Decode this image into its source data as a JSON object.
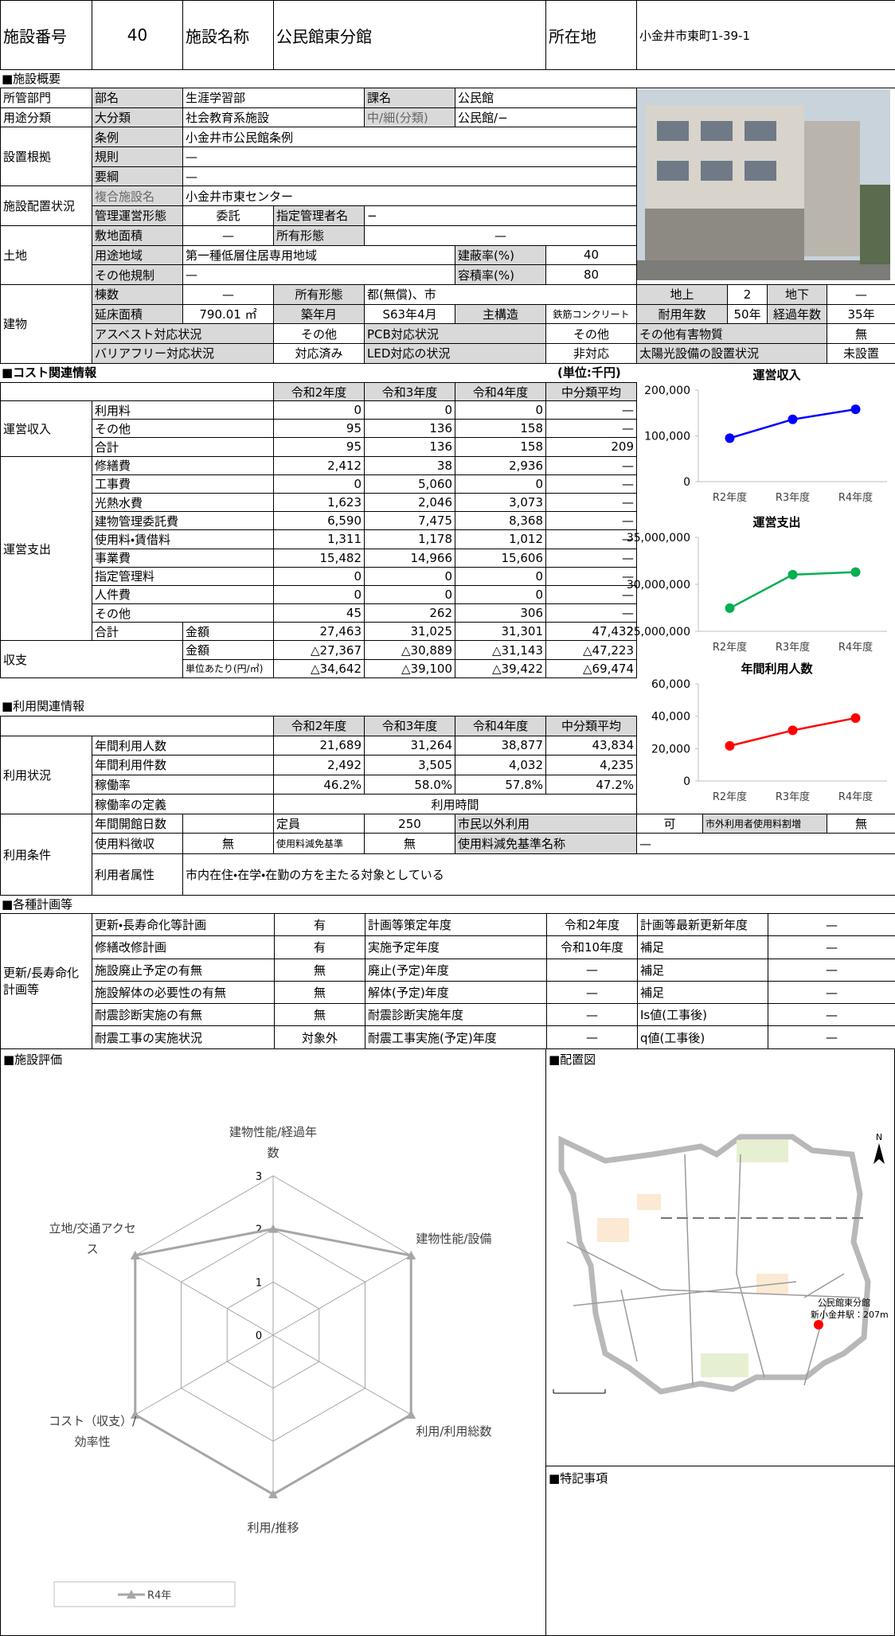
{
  "header": {
    "facility_no_label": "施設番号",
    "facility_no": "40",
    "name_label": "施設名称",
    "name": "公民館東分館",
    "location_label": "所在地",
    "location": "小金井市東町1-39-1"
  },
  "sections": [
    "■施設概要",
    "■コスト関連情報",
    "■利用関連情報",
    "■各種計画等",
    "■施設評価",
    "■配置図",
    "■特記事項"
  ],
  "cost_unit": "(単位:千円)",
  "overview": {
    "rows": [
      [
        "所管部門",
        "部名",
        "生涯学習部",
        "課名",
        "公民館"
      ],
      [
        "用途分類",
        "大分類",
        "社会教育系施設",
        "中/細(分類)",
        "公民館/−"
      ],
      [
        "設置根拠",
        "条例",
        "小金井市公民館条例"
      ],
      [
        "規則",
        "—"
      ],
      [
        "要綱",
        "—"
      ],
      [
        "施設配置状況",
        "複合施設名",
        "小金井市東センター"
      ],
      [
        "管理運営形態",
        "委託",
        "指定管理者名",
        "−"
      ],
      [
        "土地",
        "敷地面積",
        "—",
        "所有形態",
        "—"
      ],
      [
        "用途地域",
        "第一種低層住居専用地域",
        "建蔽率(%)",
        "40"
      ],
      [
        "その他規制",
        "—",
        "容積率(%)",
        "80"
      ],
      [
        "建物",
        "棟数",
        "—",
        "所有形態",
        "都(無償)、市",
        "地上",
        "2",
        "地下",
        "—"
      ],
      [
        "延床面積",
        "790.01 ㎡",
        "築年月",
        "S63年4月",
        "主構造",
        "鉄筋コンクリート",
        "耐用年数",
        "50年",
        "経過年数",
        "35年"
      ],
      [
        "アスベスト対応状況",
        "その他",
        "PCB対応状況",
        "その他",
        "その他有害物質",
        "無"
      ],
      [
        "バリアフリー対応状況",
        "対応済み",
        "LED対応の状況",
        "非対応",
        "太陽光設備の設置状況",
        "未設置"
      ]
    ]
  },
  "cost": {
    "headers": [
      "令和2年度",
      "令和3年度",
      "令和4年度",
      "中分類平均"
    ],
    "groups": [
      {
        "name": "運営収入",
        "rows": [
          {
            "item": "利用料",
            "values": [
              "0",
              "0",
              "0",
              "—"
            ]
          },
          {
            "item": "その他",
            "values": [
              "95",
              "136",
              "158",
              "—"
            ]
          },
          {
            "item": "合計",
            "values": [
              "95",
              "136",
              "158",
              "209"
            ]
          }
        ]
      },
      {
        "name": "運営支出",
        "rows": [
          {
            "item": "修繕費",
            "values": [
              "2,412",
              "38",
              "2,936",
              "—"
            ]
          },
          {
            "item": "工事費",
            "values": [
              "0",
              "5,060",
              "0",
              "—"
            ]
          },
          {
            "item": "光熱水費",
            "values": [
              "1,623",
              "2,046",
              "3,073",
              "—"
            ]
          },
          {
            "item": "建物管理委託費",
            "values": [
              "6,590",
              "7,475",
              "8,368",
              "—"
            ]
          },
          {
            "item": "使用料・賃借料",
            "values": [
              "1,311",
              "1,178",
              "1,012",
              "—"
            ]
          },
          {
            "item": "事業費",
            "values": [
              "15,482",
              "14,966",
              "15,606",
              "—"
            ]
          },
          {
            "item": "指定管理料",
            "values": [
              "0",
              "0",
              "0",
              "—"
            ]
          },
          {
            "item": "人件費",
            "values": [
              "0",
              "0",
              "0",
              "—"
            ]
          },
          {
            "item": "その他",
            "values": [
              "45",
              "262",
              "306",
              "—"
            ]
          },
          {
            "item": "合計",
            "sub": "金額",
            "values": [
              "27,463",
              "31,025",
              "31,301",
              "47,432"
            ]
          }
        ]
      },
      {
        "name": "収支",
        "rows": [
          {
            "item": "金額",
            "values": [
              "△27,367",
              "△30,889",
              "△31,143",
              "△47,223"
            ]
          },
          {
            "item": "単位あたり(円/㎡)",
            "values": [
              "△34,642",
              "△39,100",
              "△39,422",
              "△69,474"
            ]
          }
        ]
      }
    ]
  },
  "usage": {
    "headers": [
      "令和2年度",
      "令和3年度",
      "令和4年度",
      "中分類平均"
    ],
    "group": "利用状況",
    "rows": [
      {
        "item": "年間利用人数",
        "values": [
          "21,689",
          "31,264",
          "38,877",
          "43,834"
        ]
      },
      {
        "item": "年間利用件数",
        "values": [
          "2,492",
          "3,505",
          "4,032",
          "4,235"
        ]
      },
      {
        "item": "稼働率",
        "values": [
          "46.2%",
          "58.0%",
          "57.8%",
          "47.2%"
        ]
      },
      {
        "item": "稼働率の定義",
        "values": [
          "利用時間"
        ]
      }
    ]
  },
  "conditions": {
    "group": "利用条件",
    "rows": [
      [
        "年間開館日数",
        "定員",
        "250",
        "市民以外利用",
        "可",
        "市外利用者使用料割増",
        "無"
      ],
      [
        "使用料徴収",
        "無",
        "使用料減免基準",
        "無",
        "使用料減免基準名称",
        "—"
      ],
      [
        "利用者属性",
        "市内在住・在学・在勤の方を主たる対象としている"
      ]
    ]
  },
  "plans": {
    "group": "更新/長寿命化計画等",
    "rows": [
      [
        "更新・長寿命化等計画",
        "有",
        "計画等策定年度",
        "令和2年度",
        "計画等最新更新年度",
        "—"
      ],
      [
        "修繕改修計画",
        "有",
        "実施予定年度",
        "令和10年度",
        "補足",
        "—"
      ],
      [
        "施設廃止予定の有無",
        "無",
        "廃止(予定)年度",
        "—",
        "補足",
        "—"
      ],
      [
        "施設解体の必要性の有無",
        "無",
        "解体(予定)年度",
        "—",
        "補足",
        "—"
      ],
      [
        "耐震診断実施の有無",
        "無",
        "耐震診断実施年度",
        "—",
        "Is値(工事後)",
        "—"
      ],
      [
        "耐震工事の実施状況",
        "対象外",
        "耐震工事実施(予定)年度",
        "—",
        "q値(工事後)",
        "—"
      ]
    ]
  },
  "map": {
    "labels": [
      "公民館東分館",
      "新小金井駅：207m"
    ],
    "north": "N"
  },
  "chart_data": [
    {
      "type": "line",
      "title": "運営収入",
      "categories": [
        "R2年度",
        "R3年度",
        "R4年度"
      ],
      "values": [
        95000,
        136000,
        158000
      ],
      "color": "#0000ff",
      "ylim": [
        0,
        200000
      ],
      "yticks": [
        0,
        {
          "value": 100000,
          "label": "100,000"
        },
        {
          "value": 200000,
          "label": "200,000"
        }
      ]
    },
    {
      "type": "line",
      "title": "運営支出",
      "categories": [
        "R2年度",
        "R3年度",
        "R4年度"
      ],
      "values": [
        27463000,
        31025000,
        31301000
      ],
      "color": "#00b050",
      "ylim": [
        25000000,
        35000000
      ],
      "yticks": [
        {
          "value": 25000000,
          "label": "25,000,000"
        },
        {
          "value": 30000000,
          "label": "30,000,000"
        },
        {
          "value": 35000000,
          "label": "35,000,000"
        }
      ]
    },
    {
      "type": "line",
      "title": "年間利用人数",
      "categories": [
        "R2年度",
        "R3年度",
        "R4年度"
      ],
      "values": [
        21689,
        31264,
        38877
      ],
      "color": "#ff0000",
      "ylim": [
        0,
        60000
      ],
      "yticks": [
        0,
        {
          "value": 20000,
          "label": "20,000"
        },
        {
          "value": 40000,
          "label": "40,000"
        },
        {
          "value": 60000,
          "label": "60,000"
        }
      ]
    },
    {
      "type": "radar",
      "categories": [
        "建物性能/経過年数",
        "建物性能/設備",
        "利用/利用総数",
        "利用/推移",
        "コスト（収支）/効率性",
        "立地/交通アクセス"
      ],
      "ylim": [
        0,
        3
      ],
      "yticks": [
        0,
        1,
        2,
        3
      ],
      "series": [
        {
          "name": "R4年",
          "color": "#a6a6a6",
          "values": [
            2,
            3,
            3,
            3,
            3,
            3
          ]
        }
      ]
    }
  ]
}
